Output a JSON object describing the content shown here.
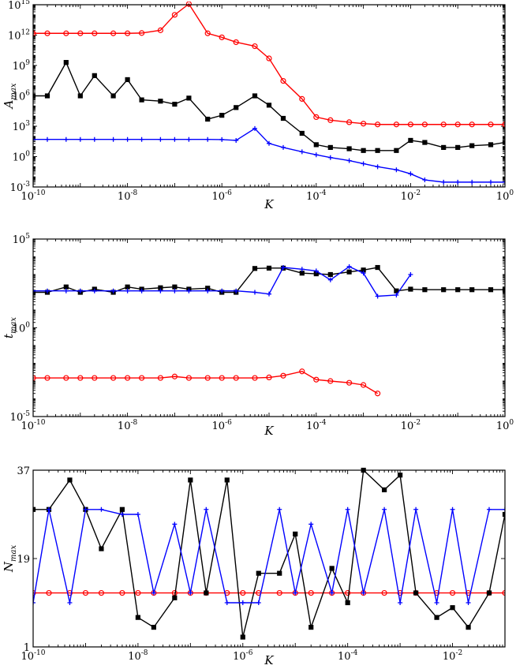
{
  "chart_data": [
    {
      "type": "line",
      "id": "amax",
      "xscale": "log",
      "yscale": "log",
      "xlim": [
        1e-10,
        1
      ],
      "ylim": [
        0.001,
        1000000000000000.0
      ],
      "xticks": [
        1e-10,
        1e-08,
        1e-06,
        0.0001,
        0.01,
        1
      ],
      "xtick_labels": [
        {
          "base": "10",
          "exp": "-10"
        },
        {
          "base": "10",
          "exp": "-8"
        },
        {
          "base": "10",
          "exp": "-6"
        },
        {
          "base": "10",
          "exp": "-4"
        },
        {
          "base": "10",
          "exp": "-2"
        },
        {
          "base": "10",
          "exp": "0"
        }
      ],
      "yticks": [
        0.001,
        1,
        1000,
        1000000.0,
        1000000000.0,
        1000000000000.0,
        1000000000000000.0
      ],
      "ytick_labels": [
        {
          "base": "10",
          "exp": "-3"
        },
        {
          "base": "10",
          "exp": "0"
        },
        {
          "base": "10",
          "exp": "3"
        },
        {
          "base": "10",
          "exp": "6"
        },
        {
          "base": "10",
          "exp": "9"
        },
        {
          "base": "10",
          "exp": "12"
        },
        {
          "base": "10",
          "exp": "15"
        }
      ],
      "xlabel": "K",
      "ylabel": {
        "main": "A",
        "sub": "max"
      },
      "grid": false,
      "series": [
        {
          "color": "#ff0000",
          "marker": "circle",
          "x": [
            1e-10,
            2e-10,
            5e-10,
            1e-09,
            2e-09,
            5e-09,
            1e-08,
            2e-08,
            5e-08,
            1e-07,
            2e-07,
            5e-07,
            1e-06,
            2e-06,
            5e-06,
            1e-05,
            2e-05,
            5e-05,
            0.0001,
            0.0002,
            0.0005,
            0.001,
            0.002,
            0.005,
            0.01,
            0.02,
            0.05,
            0.1,
            0.2,
            0.5,
            1
          ],
          "y": [
            1500000000000.0,
            1500000000000.0,
            1500000000000.0,
            1500000000000.0,
            1500000000000.0,
            1500000000000.0,
            1500000000000.0,
            1600000000000.0,
            3000000000000.0,
            100000000000000.0,
            1200000000000000.0,
            1500000000000.0,
            600000000000.0,
            200000000000.0,
            80000000000.0,
            5000000000.0,
            30000000.0,
            500000.0,
            8000.0,
            4000.0,
            2500.0,
            1800.0,
            1500.0,
            1500.0,
            1500.0,
            1500.0,
            1500.0,
            1500.0,
            1500.0,
            1500.0,
            1500.0
          ]
        },
        {
          "color": "#000000",
          "marker": "square",
          "x": [
            1e-10,
            2e-10,
            5e-10,
            1e-09,
            2e-09,
            5e-09,
            1e-08,
            2e-08,
            5e-08,
            1e-07,
            2e-07,
            5e-07,
            1e-06,
            2e-06,
            5e-06,
            1e-05,
            2e-05,
            5e-05,
            0.0001,
            0.0002,
            0.0005,
            0.001,
            0.002,
            0.005,
            0.01,
            0.02,
            0.05,
            0.1,
            0.2,
            0.5,
            1
          ],
          "y": [
            1000000.0,
            1000000.0,
            2000000000.0,
            1000000.0,
            100000000.0,
            1000000.0,
            40000000.0,
            400000.0,
            300000.0,
            150000.0,
            600000.0,
            5000.0,
            12000.0,
            70000.0,
            1000000.0,
            120000.0,
            6000.0,
            200,
            15,
            8,
            6,
            4,
            4,
            4,
            40,
            25,
            8,
            8,
            12,
            15,
            25
          ]
        },
        {
          "color": "#0000ff",
          "marker": "plus",
          "x": [
            1e-10,
            2e-10,
            5e-10,
            1e-09,
            2e-09,
            5e-09,
            1e-08,
            2e-08,
            5e-08,
            1e-07,
            2e-07,
            5e-07,
            1e-06,
            2e-06,
            5e-06,
            1e-05,
            2e-05,
            5e-05,
            0.0001,
            0.0002,
            0.0005,
            0.001,
            0.002,
            0.005,
            0.01,
            0.02,
            0.05,
            0.1,
            0.2,
            0.5,
            1
          ],
          "y": [
            50,
            50,
            50,
            50,
            50,
            50,
            50,
            50,
            50,
            50,
            50,
            50,
            48,
            40,
            600,
            20,
            8,
            3,
            1.5,
            0.8,
            0.4,
            0.2,
            0.1,
            0.05,
            0.02,
            0.005,
            0.003,
            0.003,
            0.003,
            0.003,
            0.003
          ]
        }
      ]
    },
    {
      "type": "line",
      "id": "tmax",
      "xscale": "log",
      "yscale": "log",
      "xlim": [
        1e-10,
        1
      ],
      "ylim": [
        1e-05,
        100000.0
      ],
      "xticks": [
        1e-10,
        1e-08,
        1e-06,
        0.0001,
        0.01,
        1
      ],
      "xtick_labels": [
        {
          "base": "10",
          "exp": "-10"
        },
        {
          "base": "10",
          "exp": "-8"
        },
        {
          "base": "10",
          "exp": "-6"
        },
        {
          "base": "10",
          "exp": "-4"
        },
        {
          "base": "10",
          "exp": "-2"
        },
        {
          "base": "10",
          "exp": "0"
        }
      ],
      "yticks": [
        1e-05,
        1,
        100000.0
      ],
      "ytick_labels": [
        {
          "base": "10",
          "exp": "-5"
        },
        {
          "base": "10",
          "exp": "0"
        },
        {
          "base": "10",
          "exp": "5"
        }
      ],
      "xlabel": "K",
      "ylabel": {
        "main": "t",
        "sub": "max"
      },
      "grid": false,
      "series": [
        {
          "color": "#ff0000",
          "marker": "circle",
          "x": [
            1e-10,
            2e-10,
            5e-10,
            1e-09,
            2e-09,
            5e-09,
            1e-08,
            2e-08,
            5e-08,
            1e-07,
            2e-07,
            5e-07,
            1e-06,
            2e-06,
            5e-06,
            1e-05,
            2e-05,
            5e-05,
            0.0001,
            0.0002,
            0.0005,
            0.001,
            0.002
          ],
          "y": [
            0.0015,
            0.0015,
            0.0015,
            0.0015,
            0.0015,
            0.0015,
            0.0015,
            0.0015,
            0.0015,
            0.0018,
            0.0015,
            0.0015,
            0.0015,
            0.0015,
            0.0015,
            0.0016,
            0.002,
            0.0035,
            0.0012,
            0.001,
            0.0008,
            0.0006,
            0.0002
          ]
        },
        {
          "color": "#000000",
          "marker": "square",
          "x": [
            1e-10,
            2e-10,
            5e-10,
            1e-09,
            2e-09,
            5e-09,
            1e-08,
            2e-08,
            5e-08,
            1e-07,
            2e-07,
            5e-07,
            1e-06,
            2e-06,
            5e-06,
            1e-05,
            2e-05,
            5e-05,
            0.0001,
            0.0002,
            0.0005,
            0.001,
            0.002,
            0.005,
            0.01,
            0.02,
            0.05,
            0.1,
            0.2,
            0.5,
            1
          ],
          "y": [
            100,
            100,
            200,
            100,
            150,
            100,
            200,
            150,
            180,
            200,
            150,
            170,
            100,
            100,
            2200,
            2300,
            2300,
            1200,
            1100,
            1000,
            1400,
            1800,
            2500,
            120,
            150,
            140,
            140,
            140,
            140,
            140,
            140
          ]
        },
        {
          "color": "#0000ff",
          "marker": "plus",
          "x": [
            1e-10,
            2e-10,
            5e-10,
            1e-09,
            2e-09,
            5e-09,
            1e-08,
            2e-08,
            5e-08,
            1e-07,
            2e-07,
            5e-07,
            1e-06,
            2e-06,
            5e-06,
            1e-05,
            2e-05,
            5e-05,
            0.0001,
            0.0002,
            0.0005,
            0.001,
            0.002,
            0.005,
            0.01
          ],
          "y": [
            120,
            120,
            120,
            120,
            120,
            120,
            120,
            120,
            120,
            120,
            120,
            120,
            120,
            120,
            100,
            80,
            2500,
            2000,
            1600,
            500,
            2800,
            1200,
            60,
            70,
            1000
          ]
        }
      ]
    },
    {
      "type": "line",
      "id": "nmax",
      "xscale": "log",
      "yscale": "linear",
      "xlim": [
        1e-10,
        0.1
      ],
      "ylim": [
        1,
        37
      ],
      "xticks": [
        1e-10,
        1e-08,
        1e-06,
        0.0001,
        0.01
      ],
      "xtick_labels": [
        {
          "base": "10",
          "exp": "-10"
        },
        {
          "base": "10",
          "exp": "-8"
        },
        {
          "base": "10",
          "exp": "-6"
        },
        {
          "base": "10",
          "exp": "-4"
        },
        {
          "base": "10",
          "exp": "-2"
        }
      ],
      "yticks": [
        1,
        19,
        37
      ],
      "ytick_labels": [
        {
          "base": "1",
          "exp": ""
        },
        {
          "base": "19",
          "exp": ""
        },
        {
          "base": "37",
          "exp": ""
        }
      ],
      "xlabel": "K",
      "ylabel": {
        "main": "N",
        "sub": "max"
      },
      "grid": false,
      "series": [
        {
          "color": "#ff0000",
          "marker": "circle",
          "x": [
            1e-10,
            2e-10,
            5e-10,
            1e-09,
            2e-09,
            5e-09,
            1e-08,
            2e-08,
            5e-08,
            1e-07,
            2e-07,
            5e-07,
            1e-06,
            2e-06,
            5e-06,
            1e-05,
            2e-05,
            5e-05,
            0.0001,
            0.0002,
            0.0005,
            0.001,
            0.002,
            0.005,
            0.01,
            0.02,
            0.05,
            0.1
          ],
          "y": [
            12,
            12,
            12,
            12,
            12,
            12,
            12,
            12,
            12,
            12,
            12,
            12,
            12,
            12,
            12,
            12,
            12,
            12,
            12,
            12,
            12,
            12,
            12,
            12,
            12,
            12,
            12,
            12
          ]
        },
        {
          "color": "#000000",
          "marker": "square",
          "x": [
            1e-10,
            2e-10,
            5e-10,
            1e-09,
            2e-09,
            5e-09,
            1e-08,
            2e-08,
            5e-08,
            1e-07,
            2e-07,
            5e-07,
            1e-06,
            2e-06,
            5e-06,
            1e-05,
            2e-05,
            5e-05,
            0.0001,
            0.0002,
            0.0005,
            0.001,
            0.002,
            0.005,
            0.01,
            0.02,
            0.05,
            0.1
          ],
          "y": [
            29,
            29,
            35,
            29,
            21,
            29,
            7,
            5,
            11,
            35,
            12,
            35,
            3,
            16,
            16,
            24,
            5,
            17,
            10,
            37,
            33,
            36,
            12,
            7,
            9,
            5,
            12,
            28
          ]
        },
        {
          "color": "#0000ff",
          "marker": "plus",
          "x": [
            1e-10,
            2e-10,
            5e-10,
            1e-09,
            2e-09,
            5e-09,
            1e-08,
            2e-08,
            5e-08,
            1e-07,
            2e-07,
            5e-07,
            1e-06,
            2e-06,
            5e-06,
            1e-05,
            2e-05,
            5e-05,
            0.0001,
            0.0002,
            0.0005,
            0.001,
            0.002,
            0.005,
            0.01,
            0.02,
            0.05,
            0.1
          ],
          "y": [
            10,
            29,
            10,
            29,
            29,
            28,
            28,
            12,
            26,
            12,
            29,
            10,
            10,
            10,
            29,
            12,
            26,
            12,
            29,
            12,
            29,
            10,
            29,
            10,
            29,
            10,
            29,
            29
          ]
        }
      ]
    }
  ]
}
